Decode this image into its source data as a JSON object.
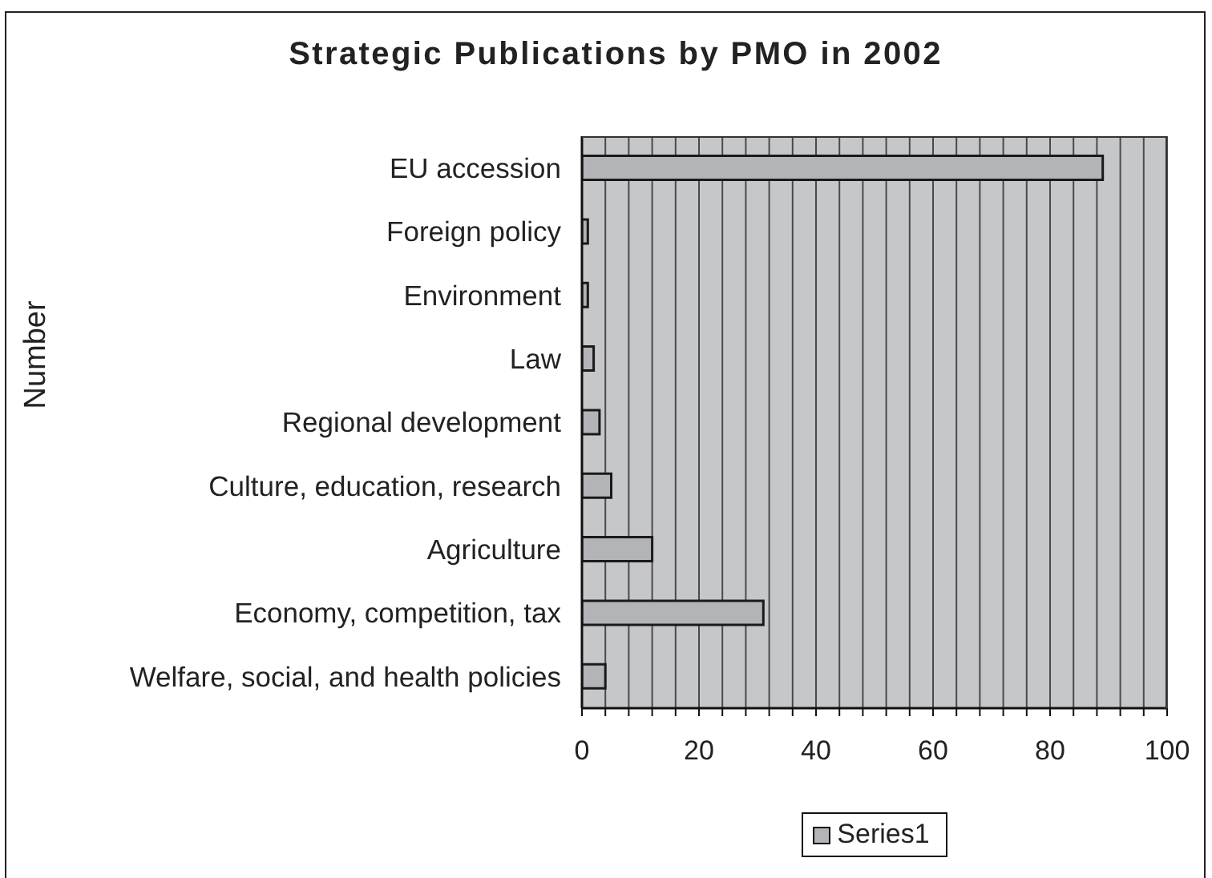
{
  "chart_data": {
    "type": "bar",
    "orientation": "horizontal",
    "title": "Strategic Publications by PMO in 2002",
    "ylabel": "Number",
    "categories": [
      "EU accession",
      "Foreign policy",
      "Environment",
      "Law",
      "Regional development",
      "Culture, education, research",
      "Agriculture",
      "Economy, competition, tax",
      "Welfare, social, and health policies"
    ],
    "series": [
      {
        "name": "Series1",
        "color": "#b3b4b7",
        "values": [
          89,
          1,
          1,
          2,
          3,
          5,
          12,
          31,
          4
        ]
      }
    ],
    "xlim": [
      0,
      100
    ],
    "xticks": [
      0,
      {
        "value": 4,
        "label": null
      },
      {
        "value": 8,
        "label": null
      },
      {
        "value": 12,
        "label": null
      },
      {
        "value": 16,
        "label": null
      },
      20,
      {
        "value": 24,
        "label": null
      },
      {
        "value": 28,
        "label": null
      },
      {
        "value": 32,
        "label": null
      },
      {
        "value": 36,
        "label": null
      },
      40,
      {
        "value": 44,
        "label": null
      },
      {
        "value": 48,
        "label": null
      },
      {
        "value": 52,
        "label": null
      },
      {
        "value": 56,
        "label": null
      },
      60,
      {
        "value": 64,
        "label": null
      },
      {
        "value": 68,
        "label": null
      },
      {
        "value": 72,
        "label": null
      },
      {
        "value": 76,
        "label": null
      },
      80,
      {
        "value": 84,
        "label": null
      },
      {
        "value": 88,
        "label": null
      },
      {
        "value": 92,
        "label": null
      },
      {
        "value": 96,
        "label": null
      },
      100
    ],
    "grid": "x",
    "legend": "bottom"
  }
}
